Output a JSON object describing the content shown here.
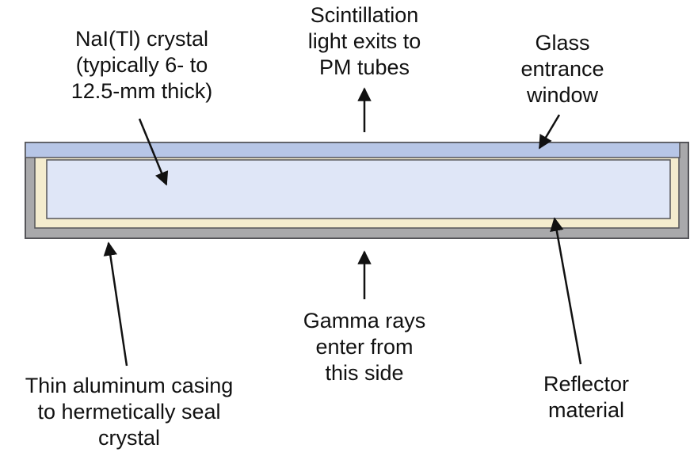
{
  "colors": {
    "casing": "#a9a9ab",
    "casing_stroke": "#555559",
    "glass_window": "#b7c6e6",
    "crystal": "#dfe6f7",
    "reflector": "#f4ecce",
    "line": "#111111",
    "text": "#111111"
  },
  "labels": {
    "crystal": [
      "NaI(Tl) crystal",
      "(typically 6- to",
      "12.5-mm thick)"
    ],
    "scintillation": [
      "Scintillation",
      "light exits to",
      "PM tubes"
    ],
    "glass": [
      "Glass",
      "entrance",
      "window"
    ],
    "gamma": [
      "Gamma rays",
      "enter from",
      "this side"
    ],
    "casing": [
      "Thin aluminum casing",
      "to hermetically seal",
      "crystal"
    ],
    "reflector": [
      "Reflector",
      "material"
    ]
  }
}
